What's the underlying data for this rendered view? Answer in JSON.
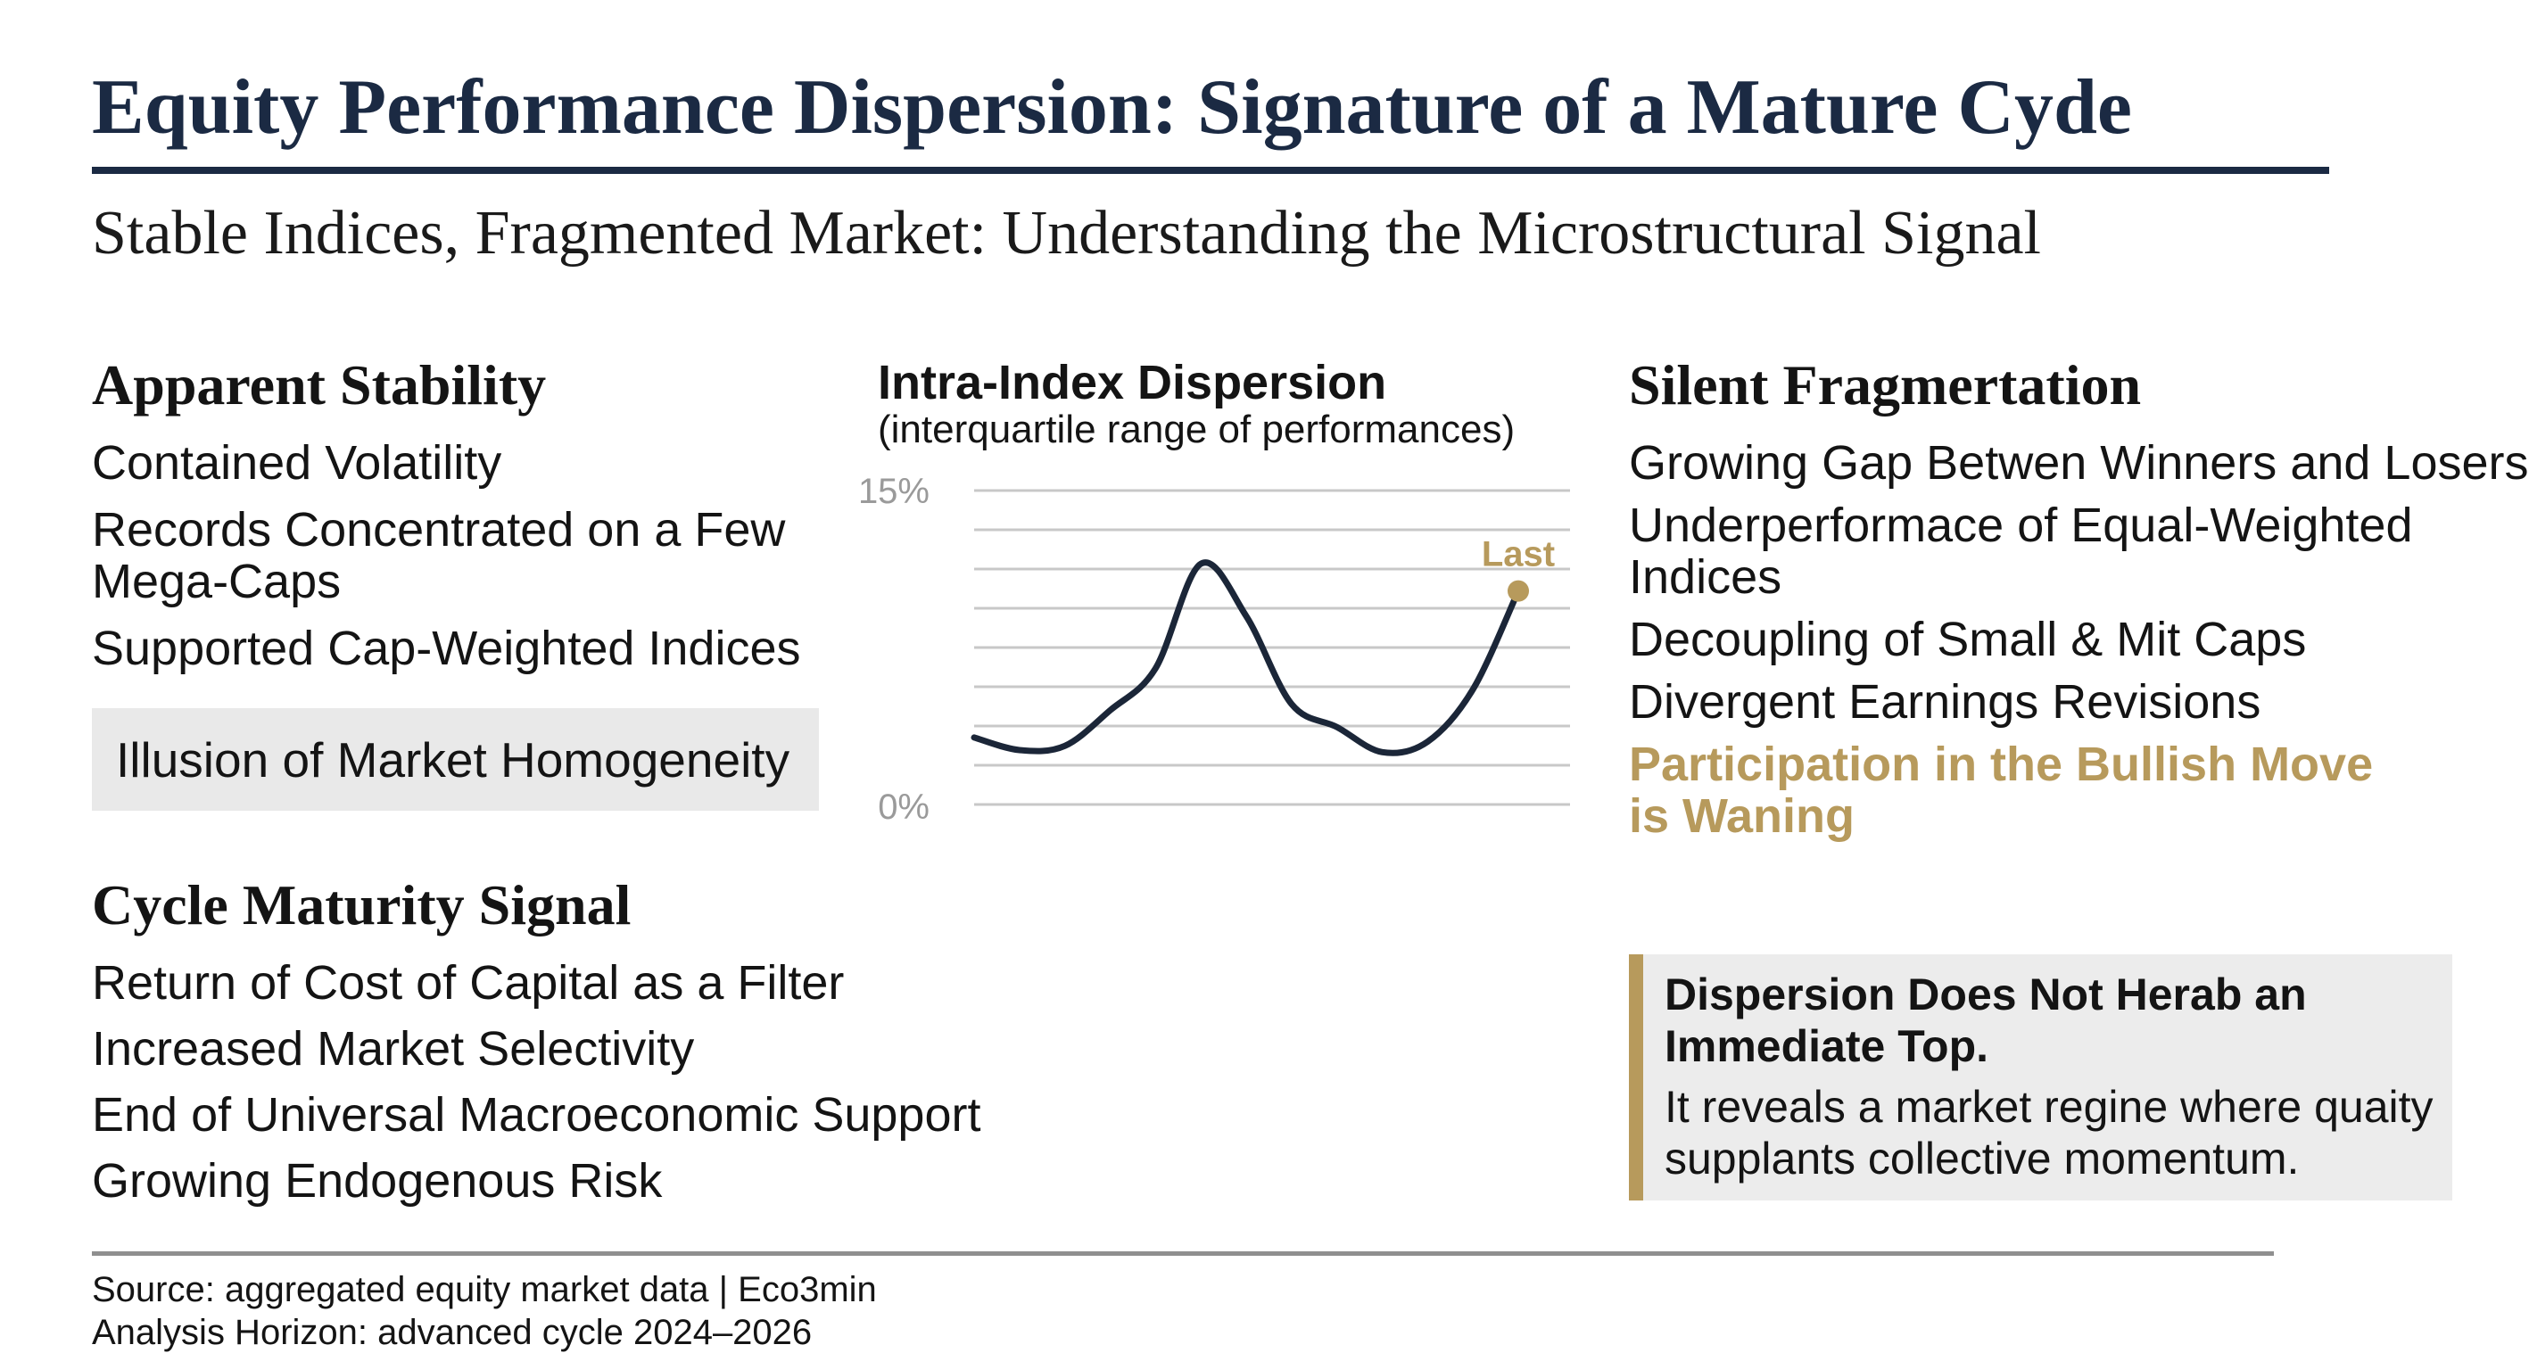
{
  "title": "Equity Performance Dispersion: Signature of a Mature Cyde",
  "subtitle": "Stable Indices, Fragmented Market: Understanding the Microstructural Signal",
  "apparent_stability": {
    "heading": "Apparent Stability",
    "items": [
      "Contained Volatility",
      "Records Concentrated on a Few Mega-Caps",
      "Supported Cap-Weighted Indices"
    ],
    "box": "Illusion of Market Homogeneity"
  },
  "cycle_maturity": {
    "heading": "Cycle Maturity Signal",
    "items": [
      "Return of Cost of Capital as a Filter",
      "Increased Market Selectivity",
      "End of Universal Macroeconomic Support",
      "Growing Endogenous Risk"
    ]
  },
  "silent_fragmentation": {
    "heading": "Silent Fragmertation",
    "items": [
      "Growing Gap Betwen Winners and Losers",
      "Underperformace of Equal-Weighted Indices",
      "Decoupling of Small & Mit Caps",
      "Divergent Earnings Revisions"
    ],
    "highlight": "Participation in the Bullish Move is Waning"
  },
  "callout": {
    "heading": "Dispersion Does Not Herab an Immediate Top.",
    "body": "It reveals a market regine where quaity supplants collective momentum."
  },
  "footer": {
    "source": "Source: aggregated equity market data | Eco3min",
    "horizon": "Analysis Horizon: advanced cycle 2024–2026"
  },
  "colors": {
    "navy": "#1b2a43",
    "gold": "#b79a5c",
    "line": "#1b2638",
    "grid": "#c8c8c8",
    "box": "#e9e9e9"
  },
  "chart_data": {
    "type": "line",
    "title": "Intra-Index Dispersion",
    "subtitle": "(interquartile range of performances)",
    "y_tick_labels": [
      "15%",
      "0%"
    ],
    "ylim": [
      0,
      15
    ],
    "grid": true,
    "series": [
      {
        "values": [
          3.2,
          2.6,
          2.8,
          4.5,
          6.5,
          11.5,
          9.0,
          4.8,
          3.7,
          2.5,
          3.0,
          5.5,
          10.2
        ]
      }
    ],
    "last_label": "Last",
    "last_value": 10.2
  }
}
